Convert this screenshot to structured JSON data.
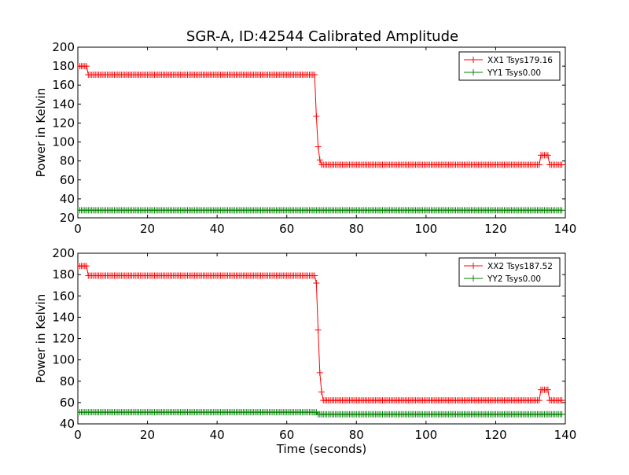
{
  "figure": {
    "title": "SGR-A, ID:42544 Calibrated Amplitude"
  },
  "chart_data": [
    {
      "type": "line",
      "title": "SGR-A, ID:42544 Calibrated Amplitude",
      "xlabel": "",
      "ylabel": "Power in Kelvin",
      "xlim": [
        0,
        140
      ],
      "ylim": [
        20,
        200
      ],
      "xticks": [
        "0",
        "20",
        "40",
        "60",
        "80",
        "100",
        "120",
        "140"
      ],
      "yticks": [
        "20",
        "40",
        "60",
        "80",
        "100",
        "120",
        "140",
        "160",
        "180",
        "200"
      ],
      "grid": false,
      "legend_position": "top-right",
      "marker": "+",
      "series": [
        {
          "name": "XX1 Tsys179.16",
          "color": "#ff0000",
          "segments": [
            {
              "from": 0,
              "to": 2.5,
              "value": 180
            },
            {
              "from": 3,
              "to": 68,
              "value": 171
            },
            {
              "from": 68.5,
              "value": 127
            },
            {
              "from": 69,
              "value": 95
            },
            {
              "from": 69.5,
              "value": 81
            },
            {
              "from": 70,
              "to": 132.5,
              "value": 76
            },
            {
              "from": 133,
              "to": 135,
              "value": 86
            },
            {
              "from": 135.5,
              "to": 139,
              "value": 76
            }
          ]
        },
        {
          "name": "YY1 Tsys0.00",
          "color": "#008000",
          "segments": [
            {
              "from": 0,
              "to": 139,
              "value": 28
            }
          ]
        }
      ]
    },
    {
      "type": "line",
      "title": "",
      "xlabel": "Time (seconds)",
      "ylabel": "Power in Kelvin",
      "xlim": [
        0,
        140
      ],
      "ylim": [
        40,
        200
      ],
      "xticks": [
        "0",
        "20",
        "40",
        "60",
        "80",
        "100",
        "120",
        "140"
      ],
      "yticks": [
        "40",
        "60",
        "80",
        "100",
        "120",
        "140",
        "160",
        "180",
        "200"
      ],
      "grid": false,
      "legend_position": "top-right",
      "marker": "+",
      "series": [
        {
          "name": "XX2 Tsys187.52",
          "color": "#ff0000",
          "segments": [
            {
              "from": 0,
              "to": 2.5,
              "value": 188
            },
            {
              "from": 3,
              "to": 68,
              "value": 179
            },
            {
              "from": 68.5,
              "value": 172
            },
            {
              "from": 69,
              "value": 128
            },
            {
              "from": 69.5,
              "value": 88
            },
            {
              "from": 70,
              "value": 70
            },
            {
              "from": 70.5,
              "to": 132.5,
              "value": 62
            },
            {
              "from": 133,
              "to": 135,
              "value": 72
            },
            {
              "from": 135.5,
              "to": 139,
              "value": 62
            }
          ]
        },
        {
          "name": "YY2 Tsys0.00",
          "color": "#008000",
          "segments": [
            {
              "from": 0,
              "to": 68.5,
              "value": 51
            },
            {
              "from": 69,
              "to": 139,
              "value": 49
            }
          ]
        }
      ]
    }
  ]
}
